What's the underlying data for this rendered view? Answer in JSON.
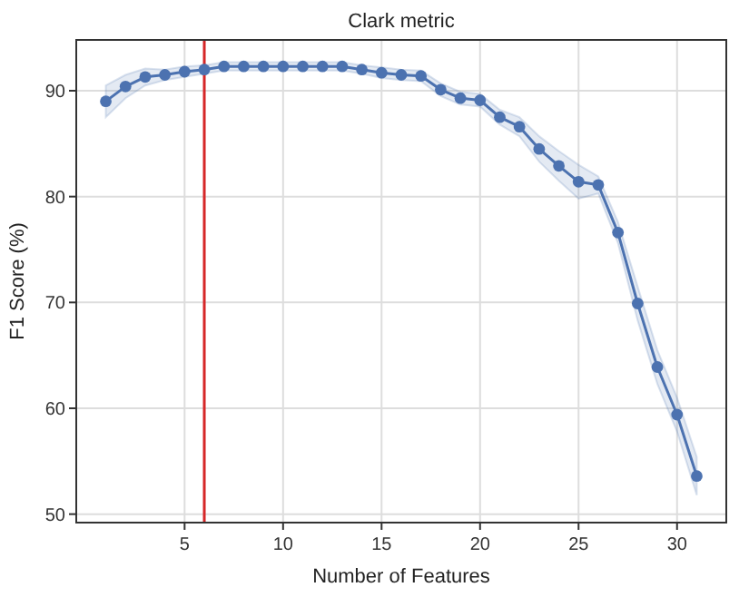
{
  "chart_data": {
    "type": "line",
    "title": "Clark metric",
    "xlabel": "Number of Features",
    "ylabel": "F1 Score (%)",
    "x": [
      1,
      2,
      3,
      4,
      5,
      6,
      7,
      8,
      9,
      10,
      11,
      12,
      13,
      14,
      15,
      16,
      17,
      18,
      19,
      20,
      21,
      22,
      23,
      24,
      25,
      26,
      27,
      28,
      29,
      30,
      31
    ],
    "series": [
      {
        "color": "#4c72b0",
        "values": [
          89.0,
          90.4,
          91.3,
          91.5,
          91.8,
          92.0,
          92.3,
          92.3,
          92.3,
          92.3,
          92.3,
          92.3,
          92.3,
          92.0,
          91.7,
          91.5,
          91.4,
          90.1,
          89.3,
          89.1,
          87.5,
          86.6,
          84.5,
          82.9,
          81.4,
          81.1,
          76.6,
          69.9,
          63.9,
          59.4,
          53.6
        ],
        "lower": [
          87.5,
          89.3,
          90.5,
          91.0,
          91.3,
          91.6,
          91.9,
          91.9,
          91.9,
          91.9,
          91.9,
          91.9,
          91.9,
          91.6,
          91.2,
          91.0,
          90.9,
          89.5,
          88.7,
          88.5,
          86.8,
          85.7,
          83.3,
          81.5,
          79.8,
          80.3,
          75.6,
          68.3,
          62.3,
          57.8,
          51.8
        ],
        "upper": [
          90.5,
          91.5,
          92.1,
          92.0,
          92.3,
          92.4,
          92.7,
          92.7,
          92.7,
          92.7,
          92.7,
          92.7,
          92.7,
          92.4,
          92.2,
          92.0,
          91.9,
          90.7,
          89.9,
          89.7,
          88.2,
          87.5,
          85.7,
          84.3,
          83.0,
          81.9,
          77.6,
          71.5,
          65.5,
          61.0,
          55.4
        ]
      }
    ],
    "xlim": [
      -0.5,
      32.5
    ],
    "xticks": [
      5,
      10,
      15,
      20,
      25,
      30
    ],
    "ylim": [
      49.2,
      94.8
    ],
    "yticks": [
      50,
      60,
      70,
      80,
      90
    ],
    "ref_lines": [
      {
        "axis": "x",
        "value": 6,
        "color": "#d62728"
      }
    ],
    "grid": true,
    "marker": "circle",
    "line_style": "solid"
  }
}
